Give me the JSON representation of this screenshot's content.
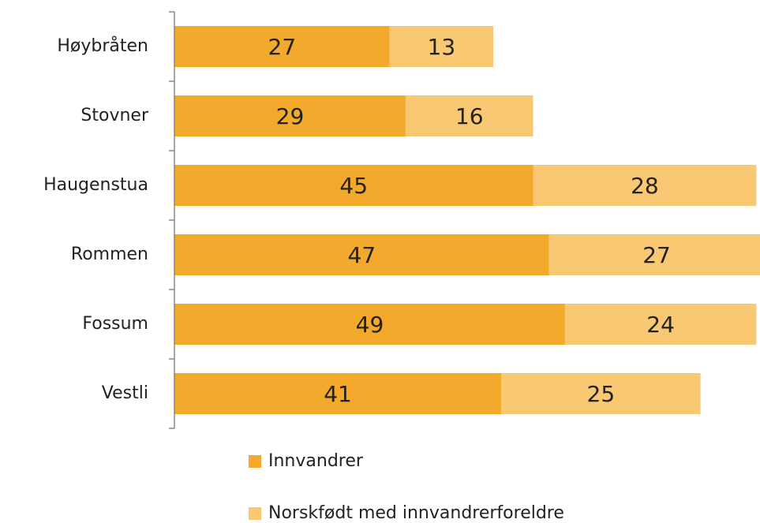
{
  "chart_data": {
    "type": "bar",
    "orientation": "horizontal",
    "stacked": true,
    "categories": [
      "Høybråten",
      "Stovner",
      "Haugenstua",
      "Rommen",
      "Fossum",
      "Vestli"
    ],
    "series": [
      {
        "name": "Innvandrer",
        "color": "#f2a92c",
        "values": [
          27,
          29,
          45,
          47,
          49,
          41
        ]
      },
      {
        "name": "Norskfødt med innvandrerforeldre",
        "color": "#f9c873",
        "values": [
          13,
          16,
          28,
          27,
          24,
          25
        ]
      }
    ]
  }
}
